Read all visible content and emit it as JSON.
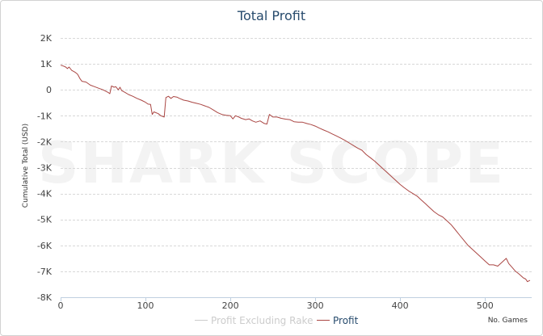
{
  "chart_data": {
    "type": "line",
    "title": "Total Profit",
    "ylabel": "Cumulative Total (USD)",
    "xlabel": "No. Games",
    "xlim": [
      0,
      555
    ],
    "ylim": [
      -8000,
      2000
    ],
    "x_ticks": [
      0,
      100,
      200,
      300,
      400,
      500
    ],
    "x_tick_labels": [
      "0",
      "100",
      "200",
      "300",
      "400",
      "500"
    ],
    "y_ticks": [
      2000,
      1000,
      0,
      -1000,
      -2000,
      -3000,
      -4000,
      -5000,
      -6000,
      -7000,
      -8000
    ],
    "y_tick_labels": [
      "2K",
      "1K",
      "0",
      "-1K",
      "-2K",
      "-3K",
      "-4K",
      "-5K",
      "-6K",
      "-7K",
      "-8K"
    ],
    "grid": true,
    "legend_position": "bottom",
    "watermark": "SHARK SCOPE",
    "series": [
      {
        "name": "Profit Excluding Rake",
        "color": "#cccccc",
        "visible": false,
        "points": []
      },
      {
        "name": "Profit",
        "color": "#aa4643",
        "visible": true,
        "points": [
          [
            0,
            950
          ],
          [
            3,
            920
          ],
          [
            6,
            880
          ],
          [
            8,
            820
          ],
          [
            10,
            880
          ],
          [
            13,
            750
          ],
          [
            17,
            680
          ],
          [
            20,
            600
          ],
          [
            23,
            420
          ],
          [
            25,
            330
          ],
          [
            30,
            300
          ],
          [
            35,
            180
          ],
          [
            40,
            120
          ],
          [
            45,
            60
          ],
          [
            50,
            0
          ],
          [
            56,
            -100
          ],
          [
            58,
            -150
          ],
          [
            60,
            150
          ],
          [
            63,
            100
          ],
          [
            65,
            120
          ],
          [
            68,
            0
          ],
          [
            70,
            100
          ],
          [
            72,
            -30
          ],
          [
            76,
            -100
          ],
          [
            80,
            -180
          ],
          [
            85,
            -250
          ],
          [
            90,
            -330
          ],
          [
            95,
            -400
          ],
          [
            100,
            -480
          ],
          [
            103,
            -550
          ],
          [
            106,
            -560
          ],
          [
            108,
            -950
          ],
          [
            110,
            -850
          ],
          [
            115,
            -920
          ],
          [
            118,
            -1000
          ],
          [
            122,
            -1050
          ],
          [
            124,
            -300
          ],
          [
            127,
            -250
          ],
          [
            130,
            -330
          ],
          [
            133,
            -260
          ],
          [
            137,
            -280
          ],
          [
            140,
            -330
          ],
          [
            145,
            -400
          ],
          [
            150,
            -430
          ],
          [
            155,
            -480
          ],
          [
            160,
            -520
          ],
          [
            165,
            -560
          ],
          [
            170,
            -620
          ],
          [
            175,
            -680
          ],
          [
            180,
            -780
          ],
          [
            185,
            -880
          ],
          [
            190,
            -950
          ],
          [
            195,
            -980
          ],
          [
            200,
            -1000
          ],
          [
            203,
            -1120
          ],
          [
            206,
            -1000
          ],
          [
            210,
            -1050
          ],
          [
            213,
            -1100
          ],
          [
            218,
            -1150
          ],
          [
            222,
            -1120
          ],
          [
            226,
            -1200
          ],
          [
            230,
            -1250
          ],
          [
            235,
            -1200
          ],
          [
            240,
            -1300
          ],
          [
            243,
            -1320
          ],
          [
            246,
            -950
          ],
          [
            250,
            -1050
          ],
          [
            255,
            -1050
          ],
          [
            260,
            -1100
          ],
          [
            265,
            -1130
          ],
          [
            270,
            -1150
          ],
          [
            275,
            -1230
          ],
          [
            280,
            -1250
          ],
          [
            285,
            -1250
          ],
          [
            290,
            -1300
          ],
          [
            295,
            -1340
          ],
          [
            300,
            -1400
          ],
          [
            305,
            -1480
          ],
          [
            310,
            -1550
          ],
          [
            315,
            -1620
          ],
          [
            320,
            -1700
          ],
          [
            325,
            -1780
          ],
          [
            330,
            -1860
          ],
          [
            335,
            -1950
          ],
          [
            340,
            -2050
          ],
          [
            345,
            -2150
          ],
          [
            350,
            -2250
          ],
          [
            355,
            -2330
          ],
          [
            360,
            -2500
          ],
          [
            365,
            -2620
          ],
          [
            370,
            -2750
          ],
          [
            375,
            -2900
          ],
          [
            380,
            -3050
          ],
          [
            385,
            -3200
          ],
          [
            390,
            -3350
          ],
          [
            395,
            -3500
          ],
          [
            400,
            -3650
          ],
          [
            405,
            -3780
          ],
          [
            410,
            -3900
          ],
          [
            415,
            -4000
          ],
          [
            420,
            -4100
          ],
          [
            425,
            -4250
          ],
          [
            430,
            -4400
          ],
          [
            435,
            -4550
          ],
          [
            440,
            -4700
          ],
          [
            445,
            -4820
          ],
          [
            450,
            -4900
          ],
          [
            455,
            -5050
          ],
          [
            460,
            -5200
          ],
          [
            465,
            -5400
          ],
          [
            470,
            -5600
          ],
          [
            475,
            -5800
          ],
          [
            480,
            -6000
          ],
          [
            485,
            -6150
          ],
          [
            490,
            -6300
          ],
          [
            495,
            -6450
          ],
          [
            500,
            -6600
          ],
          [
            505,
            -6750
          ],
          [
            510,
            -6750
          ],
          [
            515,
            -6800
          ],
          [
            520,
            -6650
          ],
          [
            525,
            -6500
          ],
          [
            528,
            -6700
          ],
          [
            532,
            -6850
          ],
          [
            536,
            -7000
          ],
          [
            540,
            -7100
          ],
          [
            545,
            -7250
          ],
          [
            548,
            -7300
          ],
          [
            550,
            -7400
          ],
          [
            553,
            -7350
          ]
        ]
      }
    ]
  }
}
